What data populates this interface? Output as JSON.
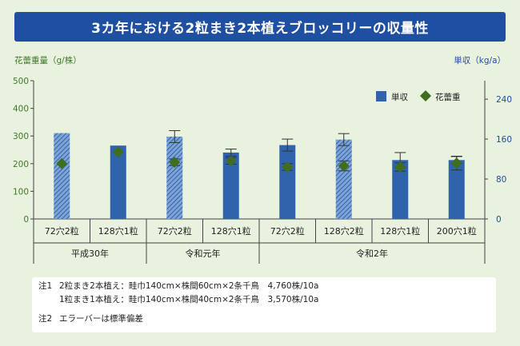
{
  "title": "3カ年における2粒まき2本植えブロッコリーの収量性",
  "chart_data": {
    "type": "bar",
    "categories": [
      "72穴2粒",
      "128穴1粒",
      "72穴2粒",
      "128穴1粒",
      "72穴2粒",
      "128穴2粒",
      "128穴1粒",
      "200穴1粒"
    ],
    "groups": [
      {
        "label": "平成30年",
        "count": 2
      },
      {
        "label": "令和元年",
        "count": 2
      },
      {
        "label": "令和2年",
        "count": 4
      }
    ],
    "hatched": [
      true,
      false,
      true,
      false,
      false,
      true,
      false,
      false
    ],
    "series": [
      {
        "name": "単収",
        "axis": "right",
        "mark": "bar",
        "values": [
          172,
          147,
          165,
          133,
          148,
          159,
          118,
          118
        ],
        "error": [
          0,
          0,
          12,
          7,
          12,
          12,
          15,
          7
        ]
      },
      {
        "name": "花蕾重",
        "axis": "left",
        "mark": "diamond",
        "values": [
          200,
          242,
          205,
          210,
          188,
          192,
          188,
          202
        ],
        "error": [
          0,
          0,
          12,
          12,
          12,
          18,
          15,
          25
        ]
      }
    ],
    "y_left": {
      "label": "花蕾重量（g/株）",
      "ticks": [
        0,
        100,
        200,
        300,
        400,
        500
      ],
      "range": [
        0,
        500
      ]
    },
    "y_right": {
      "label": "単収（kg/a）",
      "ticks": [
        0,
        80,
        160,
        240
      ],
      "range": [
        0,
        277
      ]
    },
    "grid": false,
    "legend_position": "top-right",
    "colors": {
      "bar": "#2f64ad",
      "bar_hatch": "#8fb0dc",
      "diamond": "#3f6e1e",
      "axis_text": "#3e7a26",
      "right_axis_text": "#1f4fa0"
    }
  },
  "notes": {
    "n1_label": "注1",
    "n1_line1": "2粒まき2本植え：畦巾140cm×株間60cm×2条千鳥　4,760株/10a",
    "n1_line2": "1粒まき1本植え：畦巾140cm×株間40cm×2条千鳥　3,570株/10a",
    "n2_label": "注2",
    "n2_text": "エラーバーは標準偏差"
  }
}
